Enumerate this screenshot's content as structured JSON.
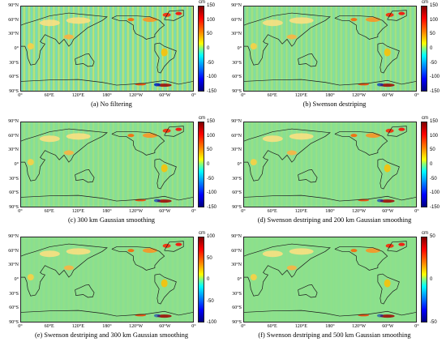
{
  "lat_labels": [
    "90°N",
    "60°N",
    "30°N",
    "0°",
    "30°S",
    "60°S",
    "90°S"
  ],
  "lon_labels": [
    "0°",
    "60°E",
    "120°E",
    "180°",
    "120°W",
    "60°W",
    "0°"
  ],
  "colorbar_unit": "cm",
  "colors": {
    "background_field": "#8ce08c",
    "coast": "#1a1a1a",
    "pos_max": "#7f0000",
    "neg_max": "#00007f"
  },
  "panels": [
    {
      "caption": "(a) No filtering",
      "ticks": [
        "150",
        "100",
        "50",
        "0",
        "-50",
        "-100",
        "-150"
      ],
      "noise": 0.9
    },
    {
      "caption": "(b) Swenson destriping",
      "ticks": [
        "150",
        "100",
        "50",
        "0",
        "-50",
        "-100",
        "-150"
      ],
      "noise": 0.45
    },
    {
      "caption": "(c) 300 km Gaussian smoothing",
      "ticks": [
        "150",
        "100",
        "50",
        "0",
        "-50",
        "-100",
        "-150"
      ],
      "noise": 0.3
    },
    {
      "caption": "(d) Swenson destriping and 200 km Gaussian smoothing",
      "ticks": [
        "150",
        "100",
        "50",
        "0",
        "-50",
        "-100",
        "-150"
      ],
      "noise": 0.2
    },
    {
      "caption": "(e) Swenson destriping and 300 km Gaussian smoothing",
      "ticks": [
        "100",
        "50",
        "0",
        "-50",
        "-100"
      ],
      "noise": 0.1
    },
    {
      "caption": "(f) Swenson destriping and 500 km Gaussian smoothing",
      "ticks": [
        "50",
        "0",
        "-50"
      ],
      "noise": 0.05
    }
  ]
}
